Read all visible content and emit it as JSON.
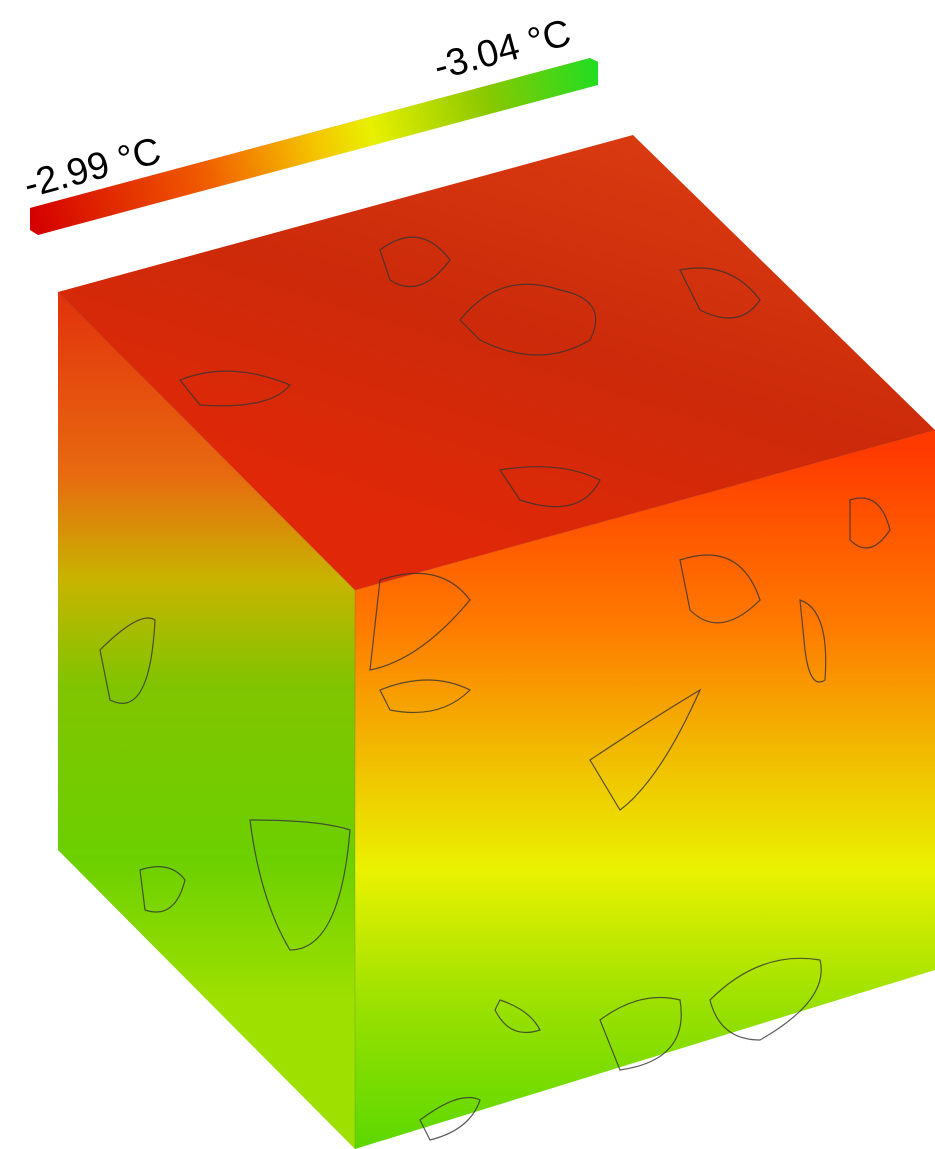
{
  "colorbar": {
    "left_label": "-2.99 °C",
    "right_label": "-3.04 °C"
  }
}
